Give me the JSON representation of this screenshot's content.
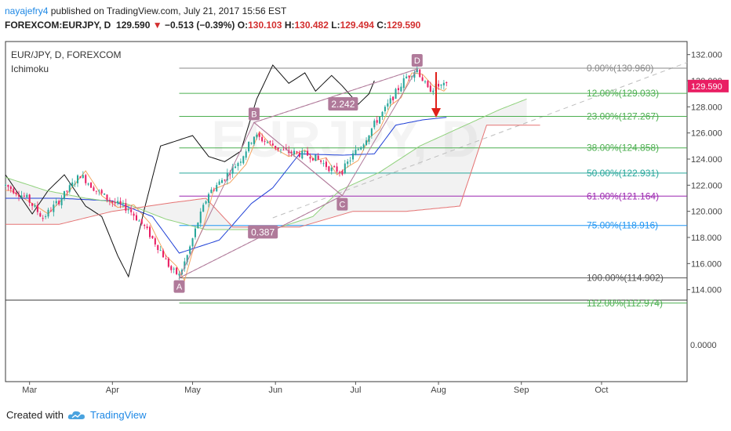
{
  "header": {
    "author": "nayajefry4",
    "published_text": "published on TradingView.com, July 21, 2017 15:56 EST",
    "symbol": "FOREXCOM:EURJPY, D",
    "last": "129.590",
    "change": "−0.513 (−0.39%)",
    "open_label": "O:",
    "open": "130.103",
    "high_label": "H:",
    "high": "130.482",
    "low_label": "L:",
    "low": "129.494",
    "close_label": "C:",
    "close": "129.590"
  },
  "legend": {
    "title": "EUR/JPY, D, FOREXCOM",
    "indicator": "Ichimoku"
  },
  "watermark": "EURJPY, D",
  "footer": {
    "created_with": "Created with",
    "brand": "TradingView"
  },
  "colors": {
    "bull": "#26a69a",
    "bear": "#e91e63",
    "tenkan": "#f4a460",
    "kijun": "#1e3fd6",
    "chikou": "#111111",
    "span_a": "#8fd17b",
    "span_b": "#e57373",
    "price_tag": "#e91e63",
    "harmonic": "#b07a9a",
    "arrow": "#e0201a"
  },
  "chart_data": {
    "type": "candlestick",
    "y_ticks": [
      "132.000",
      "130.000",
      "128.000",
      "126.000",
      "124.000",
      "122.000",
      "120.000",
      "118.000",
      "116.000",
      "114.000"
    ],
    "ylim": [
      113.2,
      133.0
    ],
    "x_ticks": [
      "Mar",
      "Apr",
      "May",
      "Jun",
      "Jul",
      "Aug",
      "Sep",
      "Oct"
    ],
    "last_price_label": "129.590",
    "oscillator_tick": "0.0000",
    "fib_levels": [
      {
        "label": "0.00%(130.960)",
        "price": 130.96,
        "color": "#888888"
      },
      {
        "label": "12.00%(129.033)",
        "price": 129.033,
        "color": "#4caf50"
      },
      {
        "label": "23.00%(127.267)",
        "price": 127.267,
        "color": "#4caf50"
      },
      {
        "label": "38.00%(124.858)",
        "price": 124.858,
        "color": "#4caf50"
      },
      {
        "label": "50.00%(122.931)",
        "price": 122.931,
        "color": "#26a69a"
      },
      {
        "label": "61.00%(121.164)",
        "price": 121.164,
        "color": "#9c27b0"
      },
      {
        "label": "75.00%(118.916)",
        "price": 118.916,
        "color": "#2196f3"
      },
      {
        "label": "100.00%(114.902)",
        "price": 114.902,
        "color": "#555555"
      },
      {
        "label": "112.00%(112.974)",
        "price": 112.974,
        "color": "#4caf50"
      }
    ],
    "pattern_points": [
      {
        "label": "A",
        "t": 65,
        "price": 114.9
      },
      {
        "label": "B",
        "t": 93,
        "price": 126.8
      },
      {
        "label": "C",
        "t": 126,
        "price": 121.2
      },
      {
        "label": "D",
        "t": 154,
        "price": 130.9
      }
    ],
    "ratio_labels": [
      {
        "label": "2.242",
        "t": 126,
        "price": 128.2
      },
      {
        "label": "0.387",
        "t": 96,
        "price": 118.4
      }
    ],
    "fib_start_t": 65,
    "fib_end_t": 255
  }
}
